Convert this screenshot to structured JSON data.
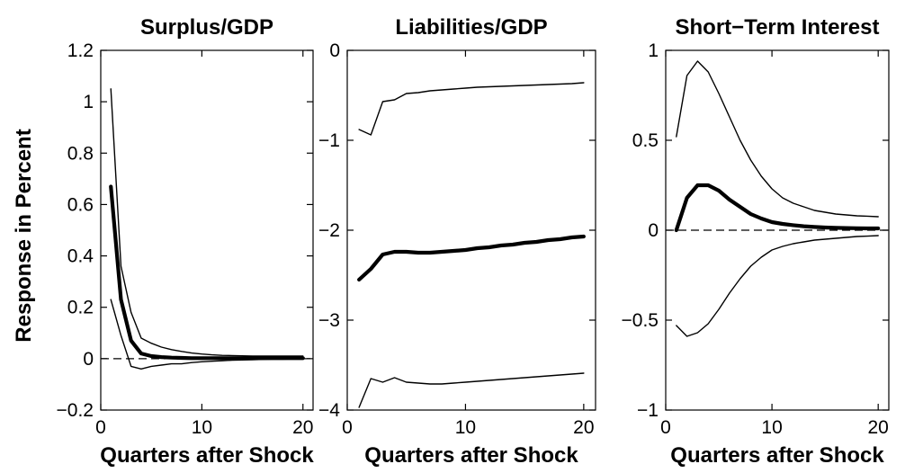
{
  "figure": {
    "ylabel": "Response in Percent"
  },
  "chart_data": [
    {
      "type": "line",
      "title": "Surplus/GDP",
      "xlabel": "Quarters after Shock",
      "ylabel": "Response in Percent",
      "xlim": [
        0,
        21
      ],
      "ylim": [
        -0.2,
        1.2
      ],
      "xticks": [
        0,
        10,
        20
      ],
      "yticks": [
        -0.2,
        0,
        0.2,
        0.4,
        0.6,
        0.8,
        1,
        1.2
      ],
      "ytick_labels": [
        "−0.2",
        "0",
        "0.2",
        "0.4",
        "0.6",
        "0.8",
        "1",
        "1.2"
      ],
      "xtick_labels": [
        "0",
        "10",
        "20"
      ],
      "zero_line": true,
      "x": [
        1,
        2,
        3,
        4,
        5,
        6,
        7,
        8,
        9,
        10,
        11,
        12,
        13,
        14,
        15,
        16,
        17,
        18,
        19,
        20
      ],
      "series": [
        {
          "role": "upper",
          "values": [
            1.05,
            0.36,
            0.18,
            0.08,
            0.06,
            0.045,
            0.035,
            0.028,
            0.022,
            0.018,
            0.015,
            0.013,
            0.012,
            0.011,
            0.01,
            0.01,
            0.01,
            0.01,
            0.01,
            0.01
          ]
        },
        {
          "role": "median",
          "values": [
            0.67,
            0.23,
            0.07,
            0.02,
            0.01,
            0.006,
            0.004,
            0.003,
            0.002,
            0.002,
            0.002,
            0.002,
            0.002,
            0.002,
            0.002,
            0.002,
            0.002,
            0.002,
            0.002,
            0.002
          ]
        },
        {
          "role": "lower",
          "values": [
            0.23,
            0.09,
            -0.03,
            -0.04,
            -0.03,
            -0.025,
            -0.02,
            -0.02,
            -0.015,
            -0.012,
            -0.01,
            -0.008,
            -0.006,
            -0.005,
            -0.004,
            -0.003,
            -0.002,
            -0.002,
            -0.001,
            -0.001
          ]
        }
      ]
    },
    {
      "type": "line",
      "title": "Liabilities/GDP",
      "xlabel": "Quarters after Shock",
      "xlim": [
        0,
        21
      ],
      "ylim": [
        -4,
        0
      ],
      "xticks": [
        0,
        10,
        20
      ],
      "yticks": [
        -4,
        -3,
        -2,
        -1,
        0
      ],
      "ytick_labels": [
        "−4",
        "−3",
        "−2",
        "−1",
        "0"
      ],
      "xtick_labels": [
        "0",
        "10",
        "20"
      ],
      "zero_line": false,
      "x": [
        1,
        2,
        3,
        4,
        5,
        6,
        7,
        8,
        9,
        10,
        11,
        12,
        13,
        14,
        15,
        16,
        17,
        18,
        19,
        20
      ],
      "series": [
        {
          "role": "upper",
          "values": [
            -0.88,
            -0.94,
            -0.57,
            -0.55,
            -0.48,
            -0.47,
            -0.45,
            -0.44,
            -0.43,
            -0.42,
            -0.41,
            -0.405,
            -0.4,
            -0.395,
            -0.39,
            -0.385,
            -0.38,
            -0.375,
            -0.37,
            -0.36
          ]
        },
        {
          "role": "median",
          "values": [
            -2.55,
            -2.43,
            -2.27,
            -2.24,
            -2.24,
            -2.25,
            -2.25,
            -2.24,
            -2.23,
            -2.22,
            -2.2,
            -2.19,
            -2.17,
            -2.16,
            -2.14,
            -2.13,
            -2.11,
            -2.1,
            -2.08,
            -2.07
          ]
        },
        {
          "role": "lower",
          "values": [
            -3.97,
            -3.65,
            -3.69,
            -3.64,
            -3.69,
            -3.7,
            -3.71,
            -3.71,
            -3.7,
            -3.69,
            -3.68,
            -3.67,
            -3.66,
            -3.65,
            -3.64,
            -3.63,
            -3.62,
            -3.61,
            -3.6,
            -3.59
          ]
        }
      ]
    },
    {
      "type": "line",
      "title": "Short−Term Interest",
      "xlabel": "Quarters after Shock",
      "xlim": [
        0,
        21
      ],
      "ylim": [
        -1,
        1
      ],
      "xticks": [
        0,
        10,
        20
      ],
      "yticks": [
        -1,
        -0.5,
        0,
        0.5,
        1
      ],
      "ytick_labels": [
        "−1",
        "−0.5",
        "0",
        "0.5",
        "1"
      ],
      "xtick_labels": [
        "0",
        "10",
        "20"
      ],
      "zero_line": true,
      "x": [
        1,
        2,
        3,
        4,
        5,
        6,
        7,
        8,
        9,
        10,
        11,
        12,
        13,
        14,
        15,
        16,
        17,
        18,
        19,
        20
      ],
      "series": [
        {
          "role": "upper",
          "values": [
            0.52,
            0.86,
            0.94,
            0.88,
            0.76,
            0.63,
            0.5,
            0.39,
            0.3,
            0.23,
            0.18,
            0.15,
            0.13,
            0.11,
            0.1,
            0.09,
            0.085,
            0.08,
            0.078,
            0.075
          ]
        },
        {
          "role": "median",
          "values": [
            0.0,
            0.18,
            0.25,
            0.25,
            0.22,
            0.17,
            0.13,
            0.09,
            0.065,
            0.045,
            0.035,
            0.028,
            0.022,
            0.018,
            0.015,
            0.013,
            0.012,
            0.011,
            0.01,
            0.01
          ]
        },
        {
          "role": "lower",
          "values": [
            -0.53,
            -0.59,
            -0.57,
            -0.52,
            -0.44,
            -0.35,
            -0.27,
            -0.2,
            -0.15,
            -0.11,
            -0.09,
            -0.075,
            -0.065,
            -0.055,
            -0.05,
            -0.045,
            -0.04,
            -0.035,
            -0.033,
            -0.03
          ]
        }
      ]
    }
  ]
}
